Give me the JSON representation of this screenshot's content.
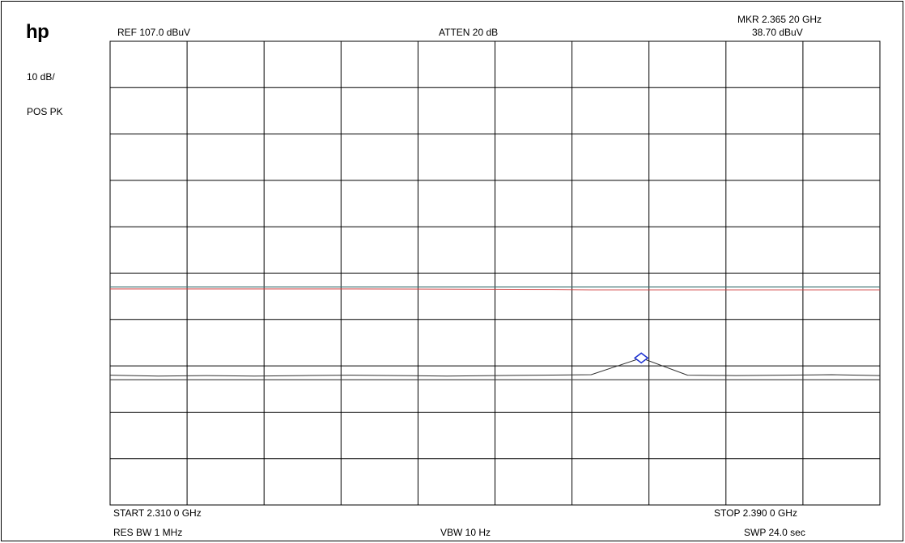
{
  "instrument": {
    "logo": "hp",
    "scale": "10 dB/",
    "detector": "POS PK"
  },
  "header": {
    "ref": "REF  107.0 dBuV",
    "atten": "ATTEN 20 dB",
    "marker_freq": "MKR 2.365 20 GHz",
    "marker_level": "38.70 dBuV"
  },
  "footer": {
    "start": "START 2.310 0 GHz",
    "stop": "STOP 2.390 0 GHz",
    "res_bw": "RES BW 1 MHz",
    "vbw": "VBW 10  Hz",
    "sweep": "SWP 24.0  sec"
  },
  "chart_data": {
    "type": "line",
    "x_unit": "GHz",
    "y_unit": "dBuV",
    "xlim": [
      2.31,
      2.39
    ],
    "ylim": [
      7.0,
      107.0
    ],
    "grid": true,
    "divisions": {
      "x": 10,
      "y": 10
    },
    "limit_lines": [
      {
        "name": "upper-limit",
        "value": 54.0,
        "color": "#3a6f6f"
      },
      {
        "name": "lower-limit",
        "value": 34.0,
        "color": "#3a3a3a"
      }
    ],
    "series": [
      {
        "color": "#d04040",
        "x": [
          2.31,
          2.335,
          2.356,
          2.36,
          2.39
        ],
        "y": [
          53.6,
          53.6,
          53.5,
          53.4,
          53.4
        ]
      },
      {
        "color": "#303030",
        "x": [
          2.31,
          2.315,
          2.32,
          2.325,
          2.33,
          2.335,
          2.34,
          2.345,
          2.35,
          2.355,
          2.36,
          2.3652,
          2.37,
          2.375,
          2.38,
          2.385,
          2.39
        ],
        "y": [
          35.0,
          34.8,
          34.9,
          34.8,
          34.9,
          35.0,
          34.9,
          34.8,
          34.9,
          35.0,
          35.1,
          38.7,
          35.0,
          34.9,
          35.0,
          35.1,
          34.9
        ]
      }
    ],
    "marker": {
      "x": 2.3652,
      "y": 38.7,
      "color": "#1a2fd0"
    }
  }
}
